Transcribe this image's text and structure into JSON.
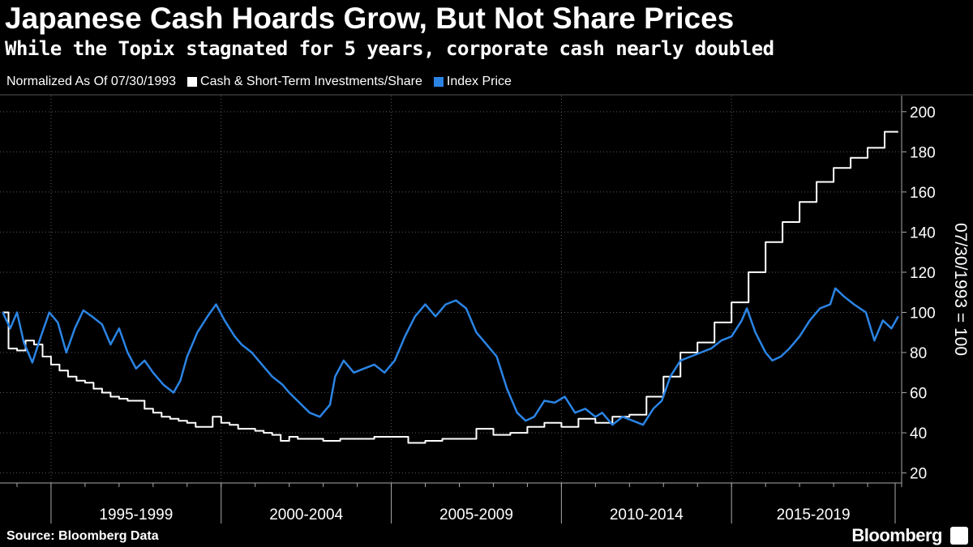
{
  "chart_data": {
    "type": "line",
    "title": "Japanese Cash Hoards Grow, But Not Share Prices",
    "subtitle": "While the Topix stagnated for 5 years, corporate cash nearly doubled",
    "legend_note": "Normalized As Of 07/30/1993",
    "ylabel": "07/30/1993 = 100",
    "ylim": [
      15,
      208
    ],
    "xlim": [
      1993.5,
      2020.0
    ],
    "y_ticks": [
      20,
      40,
      60,
      80,
      100,
      120,
      140,
      160,
      180,
      200
    ],
    "x_groups": [
      {
        "label": "1995-1999",
        "start": 1995,
        "end": 2000
      },
      {
        "label": "2000-2004",
        "start": 2000,
        "end": 2005
      },
      {
        "label": "2005-2009",
        "start": 2005,
        "end": 2010
      },
      {
        "label": "2010-2014",
        "start": 2010,
        "end": 2015
      },
      {
        "label": "2015-2019",
        "start": 2015,
        "end": 2020
      }
    ],
    "grid": true,
    "series": [
      {
        "name": "Cash & Short-Term Investments/Share",
        "color": "#ffffff",
        "step": true,
        "x": [
          1993.58,
          1993.75,
          1994.0,
          1994.25,
          1994.5,
          1994.75,
          1995.0,
          1995.25,
          1995.5,
          1995.75,
          1996.0,
          1996.25,
          1996.5,
          1996.75,
          1997.0,
          1997.25,
          1997.5,
          1997.75,
          1998.0,
          1998.25,
          1998.5,
          1998.75,
          1999.0,
          1999.25,
          1999.5,
          1999.75,
          2000.0,
          2000.25,
          2000.5,
          2000.75,
          2001.0,
          2001.25,
          2001.5,
          2001.75,
          2002.0,
          2002.25,
          2002.5,
          2002.75,
          2003.0,
          2003.25,
          2003.5,
          2003.75,
          2004.0,
          2004.5,
          2005.0,
          2005.5,
          2006.0,
          2006.5,
          2007.0,
          2007.5,
          2008.0,
          2008.5,
          2009.0,
          2009.5,
          2010.0,
          2010.5,
          2011.0,
          2011.5,
          2012.0,
          2012.5,
          2013.0,
          2013.5,
          2014.0,
          2014.5,
          2015.0,
          2015.5,
          2016.0,
          2016.5,
          2017.0,
          2017.5,
          2018.0,
          2018.5,
          2019.0,
          2019.5,
          2019.9
        ],
        "values": [
          100,
          82,
          81,
          86,
          84,
          78,
          74,
          71,
          68,
          66,
          65,
          62,
          60,
          58,
          57,
          56,
          56,
          52,
          50,
          48,
          47,
          46,
          45,
          43,
          43,
          48,
          45,
          44,
          42,
          42,
          41,
          40,
          39,
          36,
          38,
          37,
          37,
          37,
          36,
          36,
          37,
          37,
          37,
          38,
          38,
          35,
          36,
          37,
          37,
          42,
          39,
          40,
          43,
          45,
          43,
          47,
          45,
          48,
          49,
          58,
          68,
          80,
          85,
          95,
          105,
          120,
          135,
          145,
          155,
          165,
          172,
          177,
          182,
          190,
          190
        ]
      },
      {
        "name": "Index Price",
        "color": "#2b84e4",
        "step": false,
        "x": [
          1993.58,
          1993.8,
          1994.0,
          1994.2,
          1994.45,
          1994.7,
          1994.95,
          1995.2,
          1995.45,
          1995.7,
          1995.95,
          1996.2,
          1996.5,
          1996.75,
          1997.0,
          1997.25,
          1997.5,
          1997.75,
          1998.0,
          1998.3,
          1998.6,
          1998.8,
          1999.0,
          1999.3,
          1999.6,
          1999.85,
          2000.1,
          2000.4,
          2000.6,
          2000.9,
          2001.2,
          2001.5,
          2001.8,
          2002.0,
          2002.3,
          2002.6,
          2002.9,
          2003.2,
          2003.35,
          2003.6,
          2003.9,
          2004.2,
          2004.5,
          2004.8,
          2005.1,
          2005.4,
          2005.7,
          2006.0,
          2006.3,
          2006.6,
          2006.9,
          2007.2,
          2007.5,
          2007.8,
          2008.1,
          2008.4,
          2008.7,
          2008.95,
          2009.2,
          2009.5,
          2009.8,
          2010.1,
          2010.4,
          2010.7,
          2011.0,
          2011.2,
          2011.5,
          2011.8,
          2012.1,
          2012.4,
          2012.7,
          2012.95,
          2013.2,
          2013.5,
          2013.8,
          2014.1,
          2014.4,
          2014.7,
          2015.0,
          2015.3,
          2015.45,
          2015.7,
          2016.0,
          2016.2,
          2016.45,
          2016.7,
          2017.0,
          2017.3,
          2017.6,
          2017.9,
          2018.05,
          2018.3,
          2018.6,
          2018.95,
          2019.2,
          2019.45,
          2019.7,
          2019.9
        ],
        "values": [
          100,
          92,
          100,
          85,
          75,
          88,
          100,
          95,
          80,
          92,
          101,
          98,
          94,
          84,
          92,
          80,
          72,
          76,
          70,
          64,
          60,
          66,
          78,
          90,
          98,
          104,
          96,
          88,
          84,
          80,
          74,
          68,
          64,
          60,
          55,
          50,
          48,
          54,
          68,
          76,
          70,
          72,
          74,
          70,
          76,
          88,
          98,
          104,
          98,
          104,
          106,
          102,
          90,
          84,
          78,
          62,
          50,
          46,
          48,
          56,
          55,
          58,
          50,
          52,
          48,
          50,
          44,
          48,
          46,
          44,
          52,
          56,
          68,
          76,
          78,
          80,
          82,
          86,
          88,
          96,
          102,
          90,
          80,
          76,
          78,
          82,
          88,
          96,
          102,
          104,
          112,
          108,
          104,
          100,
          86,
          96,
          92,
          98
        ]
      }
    ]
  },
  "footer": {
    "source": "Source: Bloomberg Data",
    "brand": "Bloomberg"
  }
}
